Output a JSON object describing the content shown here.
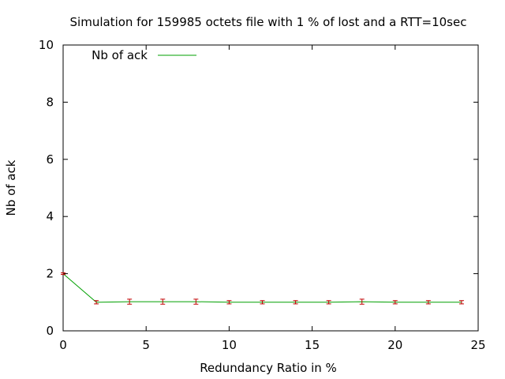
{
  "chart_data": {
    "type": "line",
    "title": "Simulation for 159985 octets file with 1 % of lost and a RTT=10sec",
    "xlabel": "Redundancy Ratio in %",
    "ylabel": "Nb of ack",
    "xlim": [
      0,
      25
    ],
    "ylim": [
      0,
      10
    ],
    "xticks": [
      "0",
      "5",
      "10",
      "15",
      "20",
      "25"
    ],
    "yticks": [
      "0",
      "2",
      "4",
      "6",
      "8",
      "10"
    ],
    "grid": false,
    "legend_position": "top-left",
    "series": [
      {
        "name": "Nb of ack",
        "color": "#00a000",
        "errorbar_color": "#c00000",
        "x": [
          0,
          2,
          4,
          6,
          8,
          10,
          12,
          14,
          16,
          18,
          20,
          22,
          24
        ],
        "y": [
          2,
          1,
          1.02,
          1.02,
          1.02,
          1,
          1,
          1,
          1,
          1.02,
          1,
          1,
          1
        ],
        "err": [
          0,
          0.03,
          0.06,
          0.06,
          0.06,
          0.03,
          0.03,
          0.03,
          0.03,
          0.06,
          0.03,
          0.03,
          0.03
        ]
      }
    ]
  }
}
